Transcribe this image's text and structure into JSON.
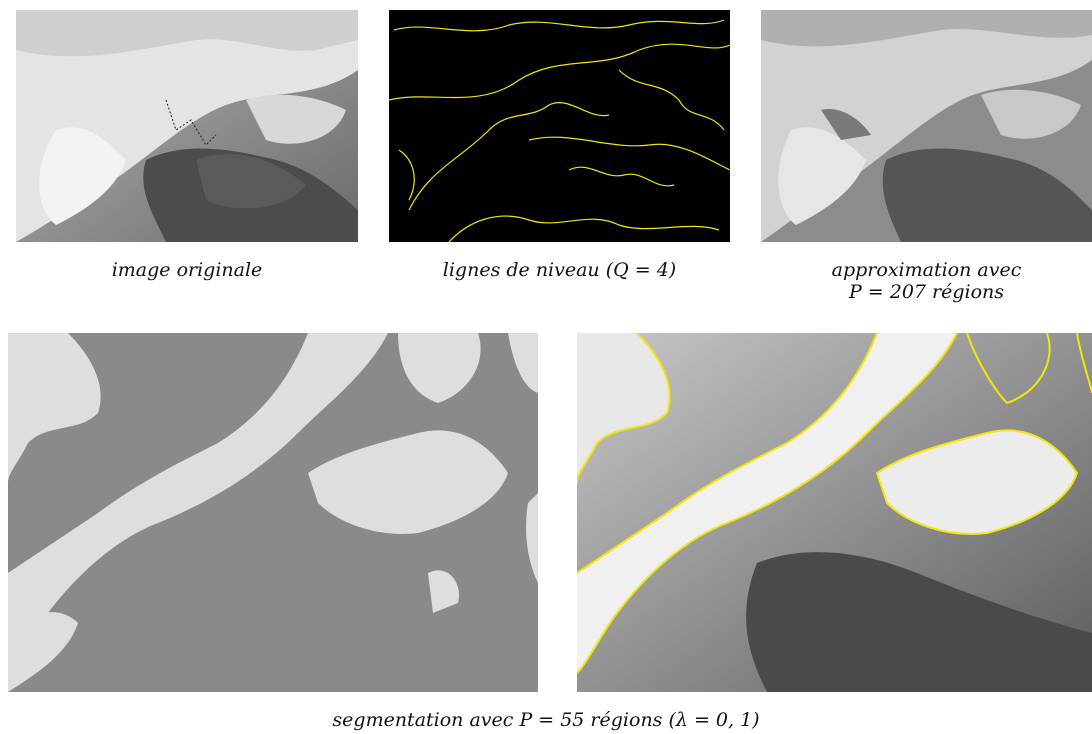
{
  "figure": {
    "top_row": [
      {
        "caption_lines": [
          "image originale"
        ],
        "content": "satellite cloud image (grayscale)"
      },
      {
        "caption_lines": [
          "lignes de niveau (Q = 4)"
        ],
        "content": "yellow level lines on black"
      },
      {
        "caption_lines": [
          "approximation avec",
          "P = 207 régions"
        ],
        "content": "piecewise-constant gray approximation"
      }
    ],
    "bottom_row": [
      {
        "content": "two-level gray segmentation"
      },
      {
        "content": "yellow segmentation boundaries over original image"
      }
    ],
    "bottom_caption": "segmentation avec P = 55 régions (λ = 0, 1)",
    "colors": {
      "contour": "#f2e60a",
      "background": "#ffffff",
      "dark_gray": "#8a8a8a",
      "light_gray": "#dedede"
    }
  }
}
